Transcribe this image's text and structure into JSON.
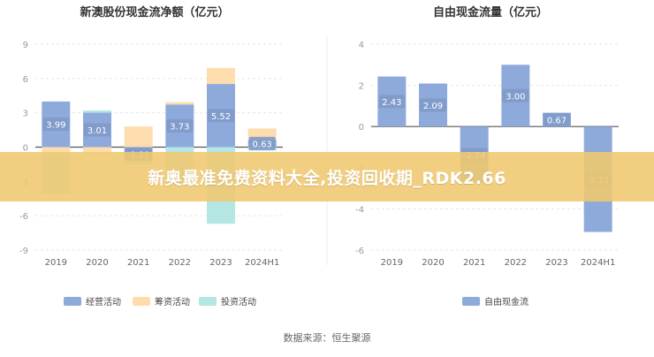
{
  "colors": {
    "operating": "#8eaadb",
    "financing": "#fddcae",
    "investing": "#b4e6e4",
    "fcf": "#8eaadb",
    "axis": "#999999",
    "grid": "#e6e6e6",
    "overlay": "#f0c86e"
  },
  "banner_text": "新奥最准免费资料大全,投资回收期_RDK2.66",
  "source_text": "数据来源：恒生聚源",
  "chart_data": [
    {
      "type": "bar",
      "stacked": true,
      "title": "新澳股份现金流净额（亿元）",
      "categories": [
        "2019",
        "2020",
        "2021",
        "2022",
        "2023",
        "2024H1"
      ],
      "ylim": [
        -9,
        9
      ],
      "yticks": [
        9,
        6,
        3,
        0,
        -3,
        -6,
        -9
      ],
      "grid": true,
      "legend_position": "bottom",
      "series": [
        {
          "name": "经营活动",
          "color_key": "operating",
          "values": [
            3.99,
            3.01,
            -1.21,
            3.73,
            5.52,
            0.63
          ],
          "labels": [
            "3.99",
            "3.01",
            "-1.21",
            "3.73",
            "5.52",
            "0.63"
          ]
        },
        {
          "name": "筹资活动",
          "color_key": "financing",
          "values": [
            -0.6,
            -0.6,
            1.8,
            0.2,
            1.4,
            1.0
          ]
        },
        {
          "name": "投资活动",
          "color_key": "investing",
          "values": [
            -3.5,
            0.2,
            -0.3,
            -3.2,
            -6.7,
            -0.3
          ]
        }
      ]
    },
    {
      "type": "bar",
      "title": "自由现金流量（亿元）",
      "categories": [
        "2019",
        "2020",
        "2021",
        "2022",
        "2023",
        "2024H1"
      ],
      "ylim": [
        -6,
        4
      ],
      "yticks": [
        4,
        2,
        0,
        -2,
        -4,
        -6
      ],
      "grid": true,
      "legend_position": "bottom",
      "series": [
        {
          "name": "自由现金流",
          "color_key": "fcf",
          "values": [
            2.43,
            2.09,
            -2.74,
            3.0,
            0.67,
            -5.12
          ],
          "labels": [
            "2.43",
            "2.09",
            "-2.74",
            "3.00",
            "0.67",
            "-5.12"
          ]
        }
      ]
    }
  ]
}
